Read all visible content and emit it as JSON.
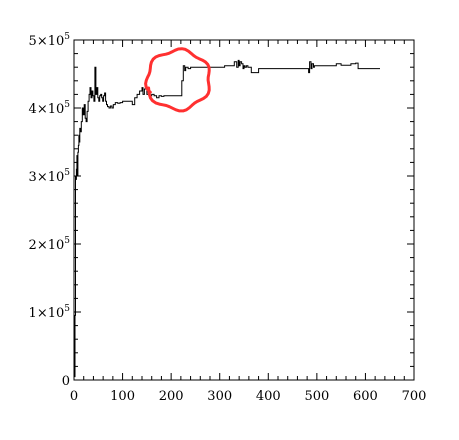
{
  "chart_data": {
    "type": "line",
    "title": "",
    "xlabel": "",
    "ylabel": "",
    "xlim": [
      0,
      700
    ],
    "ylim": [
      0,
      500000
    ],
    "x_ticks": [
      0,
      100,
      200,
      300,
      400,
      500,
      600,
      700
    ],
    "x_tick_labels": [
      "0",
      "100",
      "200",
      "300",
      "400",
      "500",
      "600",
      "700"
    ],
    "y_ticks": [
      {
        "value": 0,
        "mantissa": "0",
        "exponent": ""
      },
      {
        "value": 100000,
        "mantissa": "1×10",
        "exponent": "5"
      },
      {
        "value": 200000,
        "mantissa": "2×10",
        "exponent": "5"
      },
      {
        "value": 300000,
        "mantissa": "3×10",
        "exponent": "5"
      },
      {
        "value": 400000,
        "mantissa": "4×10",
        "exponent": "5"
      },
      {
        "value": 500000,
        "mantissa": "5×10",
        "exponent": "5"
      }
    ],
    "grid": false,
    "series": [
      {
        "color": "#000000",
        "x": [
          0,
          2,
          3,
          4,
          5,
          6,
          7,
          8,
          9,
          10,
          11,
          12,
          13,
          15,
          17,
          19,
          21,
          23,
          25,
          27,
          29,
          31,
          33,
          35,
          37,
          39,
          41,
          43,
          45,
          47,
          49,
          51,
          53,
          55,
          57,
          59,
          61,
          63,
          65,
          67,
          69,
          72,
          75,
          78,
          81,
          85,
          90,
          95,
          100,
          110,
          120,
          125,
          130,
          135,
          140,
          142,
          145,
          150,
          155,
          160,
          165,
          170,
          175,
          180,
          185,
          190,
          195,
          200,
          210,
          220,
          222,
          225,
          228,
          230,
          235,
          240,
          250,
          260,
          270,
          280,
          290,
          300,
          310,
          320,
          330,
          335,
          338,
          340,
          342,
          345,
          348,
          350,
          352,
          355,
          358,
          360,
          365,
          370,
          375,
          380,
          390,
          400,
          420,
          440,
          460,
          480,
          483,
          485,
          488,
          490,
          493,
          495,
          500,
          510,
          520,
          530,
          540,
          550,
          560,
          570,
          580,
          585,
          590,
          600,
          610,
          620,
          630
        ],
        "y": [
          5000,
          95000,
          300000,
          295000,
          310000,
          330000,
          300000,
          335000,
          345000,
          360000,
          350000,
          370000,
          365000,
          380000,
          400000,
          390000,
          405000,
          385000,
          380000,
          395000,
          410000,
          420000,
          430000,
          415000,
          425000,
          418000,
          410000,
          460000,
          420000,
          430000,
          415000,
          410000,
          418000,
          420000,
          415000,
          410000,
          418000,
          422000,
          410000,
          405000,
          402000,
          400000,
          403000,
          400000,
          405000,
          408000,
          407000,
          408000,
          410000,
          410000,
          405000,
          415000,
          420000,
          425000,
          430000,
          420000,
          428000,
          420000,
          418000,
          420000,
          418000,
          415000,
          418000,
          417000,
          418000,
          418000,
          418000,
          418000,
          418000,
          418000,
          440000,
          462000,
          455000,
          460000,
          458000,
          460000,
          460000,
          460000,
          460000,
          460000,
          460000,
          460000,
          462000,
          462000,
          468000,
          460000,
          470000,
          462000,
          468000,
          465000,
          458000,
          462000,
          460000,
          462000,
          460000,
          460000,
          452000,
          452000,
          452000,
          458000,
          458000,
          458000,
          458000,
          458000,
          458000,
          458000,
          452000,
          468000,
          458000,
          465000,
          460000,
          462000,
          462000,
          462000,
          462000,
          462000,
          465000,
          463000,
          463000,
          465000,
          466000,
          458000,
          458000,
          458000,
          458000,
          458000,
          458000
        ]
      }
    ],
    "annotations": [
      {
        "type": "hand-drawn-circle",
        "color": "#ff3030",
        "around_x": [
          150,
          280
        ],
        "around_y": [
          400000,
          485000
        ]
      }
    ]
  }
}
